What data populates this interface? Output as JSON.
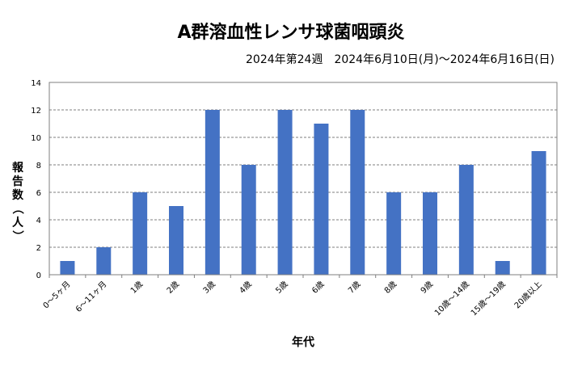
{
  "chart_data": {
    "type": "bar",
    "title": "A群溶血性レンサ球菌咽頭炎",
    "subtitle": "2024年第24週　2024年6月10日(月)～2024年6月16日(日)",
    "xlabel": "年代",
    "ylabel": "報告数（人）",
    "ylim": [
      0,
      14
    ],
    "yticks": [
      0,
      2,
      4,
      6,
      8,
      10,
      12,
      14
    ],
    "grid": "horizontal-dashed",
    "bar_color": "#4472C4",
    "categories": [
      "0～5ヶ月",
      "6～11ヶ月",
      "1歳",
      "2歳",
      "3歳",
      "4歳",
      "5歳",
      "6歳",
      "7歳",
      "8歳",
      "9歳",
      "10歳～14歳",
      "15歳～19歳",
      "20歳以上"
    ],
    "values": [
      1,
      2,
      6,
      5,
      12,
      8,
      12,
      11,
      12,
      6,
      6,
      8,
      1,
      9
    ]
  }
}
